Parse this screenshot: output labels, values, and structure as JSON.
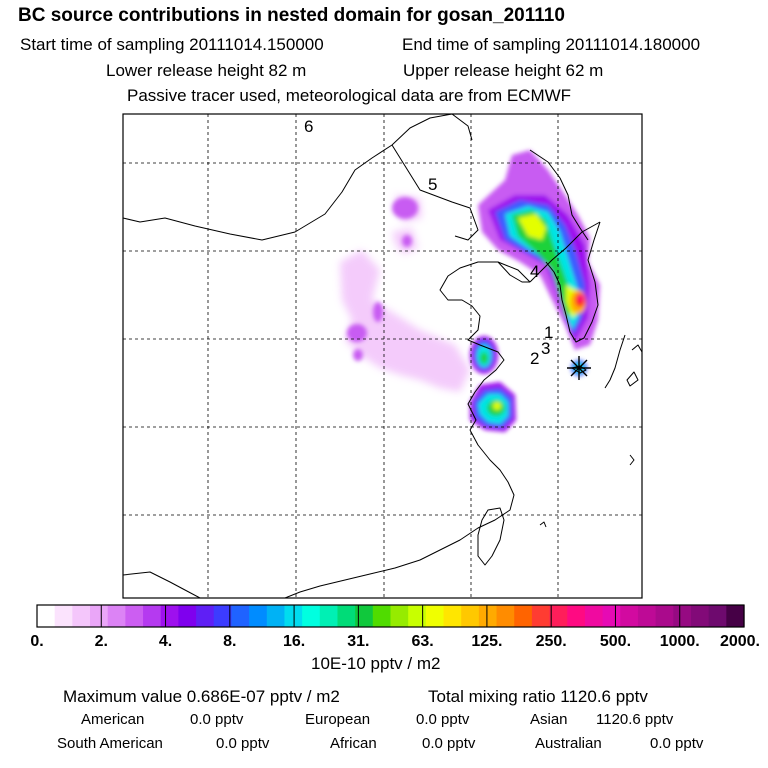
{
  "header": {
    "title": "BC  source contributions in nested domain for gosan_201110",
    "start_label": "Start time of sampling 20111014.150000",
    "end_label": "End time of sampling 20111014.180000",
    "lower_label": "Lower release height   82 m",
    "upper_label": "Upper release height   62 m",
    "tracer_note": "Passive tracer used, meteorological data are from ECMWF"
  },
  "map": {
    "region_labels": [
      "6",
      "5",
      "4",
      "1",
      "3",
      "2"
    ],
    "receptor_icon": "asterisk-star-icon",
    "colors": {
      "light_violet": "#f3c6fb",
      "violet": "#c85cf2",
      "purple": "#9e10ee",
      "blue": "#3c5bff",
      "cyan": "#00e5e5",
      "green": "#1ed23a",
      "yellow": "#e4ff00",
      "orange": "#ffb000",
      "red": "#ff1e1e",
      "magenta": "#ff0088"
    }
  },
  "colorbar": {
    "unit_label": "10E-10 pptv / m2",
    "tick_labels": [
      "0.",
      "2.",
      "4.",
      "8.",
      "16.",
      "31.",
      "63.",
      "125.",
      "250.",
      "500.",
      "1000.",
      "2000."
    ],
    "colors": [
      "#ffffff",
      "#fbe3fd",
      "#f4c6fb",
      "#eaa6f8",
      "#dc83f5",
      "#cc5ef2",
      "#b53af0",
      "#9e10ee",
      "#7f00ee",
      "#5f1ff5",
      "#3c3cff",
      "#1f63ff",
      "#008cff",
      "#00b2f5",
      "#00dcef",
      "#00ffe0",
      "#00f0b4",
      "#00dc78",
      "#10c83c",
      "#50dc00",
      "#96eb00",
      "#c8ff00",
      "#f0ff00",
      "#ffe600",
      "#ffc800",
      "#ffaa00",
      "#ff8c00",
      "#ff6400",
      "#ff3c32",
      "#ff1e5a",
      "#ff0a82",
      "#f00aa0",
      "#e60ab4",
      "#d20aa0",
      "#be0a96",
      "#aa0a8c",
      "#960a82",
      "#820a78",
      "#6e0a6e",
      "#460046"
    ]
  },
  "footer": {
    "max_value": "Maximum value  0.686E-07 pptv / m2",
    "total_mixing": "Total mixing ratio     1120.6 pptv",
    "american": "American",
    "american_val": "0.0 pptv",
    "european": "European",
    "european_val": "0.0 pptv",
    "asian": "Asian",
    "asian_val": "1120.6 pptv",
    "south_american": "South American",
    "south_american_val": "0.0 pptv",
    "african": "African",
    "african_val": "0.0 pptv",
    "australian": "Australian",
    "australian_val": "0.0 pptv"
  }
}
